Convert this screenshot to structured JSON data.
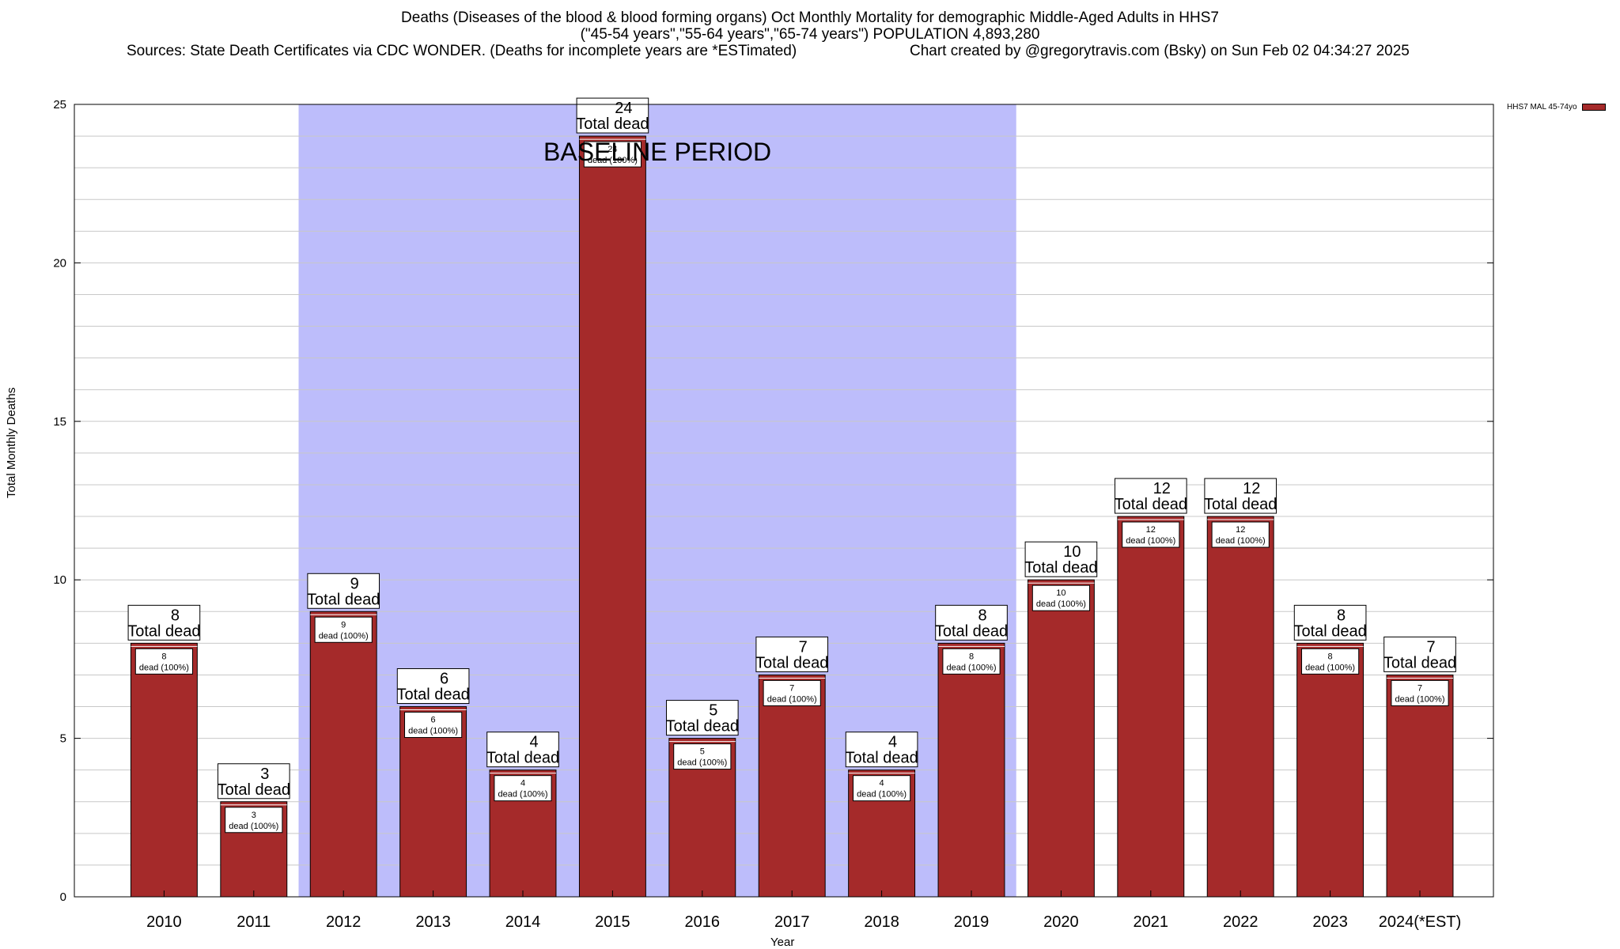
{
  "title_lines": [
    "Deaths (Diseases of the blood & blood forming organs) Oct Monthly Mortality for demographic Middle-Aged Adults in HHS7",
    "(\"45-54 years\",\"55-64 years\",\"65-74 years\") POPULATION 4,893,280",
    "Sources: State Death Certificates via CDC WONDER. (Deaths for incomplete years are *ESTimated)",
    "Chart created by @gregorytravis.com (Bsky) on Sun Feb 02 04:34:27 2025"
  ],
  "chart_data": {
    "type": "bar",
    "categories": [
      "2010",
      "2011",
      "2012",
      "2013",
      "2014",
      "2015",
      "2016",
      "2017",
      "2018",
      "2019",
      "2020",
      "2021",
      "2022",
      "2023",
      "2024(*EST)"
    ],
    "series": [
      {
        "name": "HHS7 MAL 45-74yo",
        "values": [
          8,
          3,
          9,
          6,
          4,
          24,
          5,
          7,
          4,
          8,
          10,
          12,
          12,
          8,
          7
        ]
      }
    ],
    "xlabel": "Year",
    "ylabel": "Total Monthly Deaths",
    "ylim": [
      0,
      25
    ],
    "yticks": [
      0,
      5,
      10,
      15,
      20,
      25
    ],
    "grid": "horizontal",
    "legend": "top-right",
    "annotation_label": "Total dead",
    "inner_label_suffix": "dead (100%)",
    "baseline_period": {
      "label": "BASELINE PERIOD",
      "from": "2012",
      "to": "2019"
    }
  },
  "colors": {
    "bar": "#a52a2a",
    "baseline_shade": "#bdbdfb",
    "grid": "#c8c8c8"
  }
}
